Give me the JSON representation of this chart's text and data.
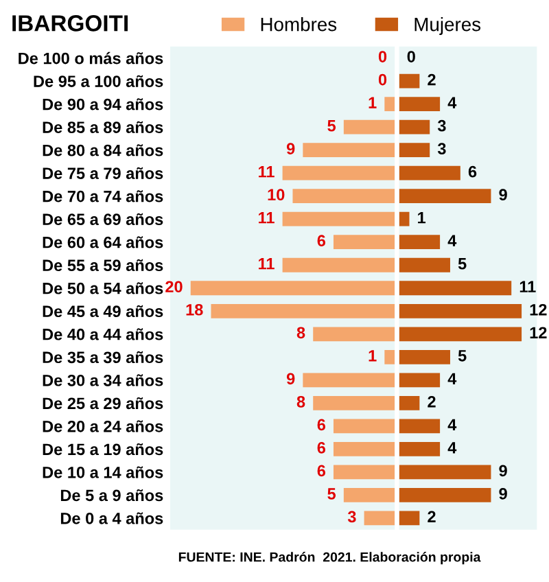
{
  "chart_data": [
    {
      "type": "bar",
      "orientation": "horizontal",
      "title": "IBARGOITI",
      "annotations": [
        "FUENTE: INE. Padrón  2021. Elaboración propia"
      ],
      "categories": [
        "De 100 o más años",
        "De 95 a 100 años",
        "De 90 a 94 años",
        "De 85 a 89 años",
        "De 80 a 84 años",
        "De 75 a 79 años",
        "De 70 a 74 años",
        "De 65 a 69 años",
        "De 60 a 64 años",
        "De 55 a 59 años",
        "De 50 a 54 años",
        "De 45 a 49 años",
        "De 40 a 44 años",
        "De 35 a 39 años",
        "De 30 a 34 años",
        "De 25 a 29 años",
        "De 20 a 24 años",
        "De 15 a 19 años",
        "De 10 a 14 años",
        "De 5 a 9 años",
        "De 0 a 4 años"
      ],
      "series": [
        {
          "name": "Hombres",
          "color": "#f4a66c",
          "values": [
            0,
            0,
            1,
            5,
            9,
            11,
            10,
            11,
            6,
            11,
            20,
            18,
            8,
            1,
            9,
            8,
            6,
            6,
            6,
            5,
            3
          ]
        }
      ],
      "xlim": [
        22,
        0
      ],
      "tick_labels": "y",
      "legend": "top",
      "data_labels": true
    },
    {
      "type": "bar",
      "orientation": "horizontal",
      "categories": [
        null,
        null,
        null,
        null,
        null,
        null,
        null,
        null,
        null,
        null,
        null,
        null,
        null,
        null,
        null,
        null,
        null,
        null,
        null,
        null,
        null
      ],
      "series": [
        {
          "name": "Mujeres",
          "color": "#c55a11",
          "values": [
            0,
            2,
            4,
            3,
            3,
            6,
            9,
            1,
            4,
            5,
            11,
            12,
            12,
            5,
            4,
            2,
            4,
            4,
            9,
            9,
            2
          ]
        }
      ],
      "xlim": [
        0,
        13.5
      ],
      "tick_labels": false,
      "data_labels": true
    }
  ]
}
